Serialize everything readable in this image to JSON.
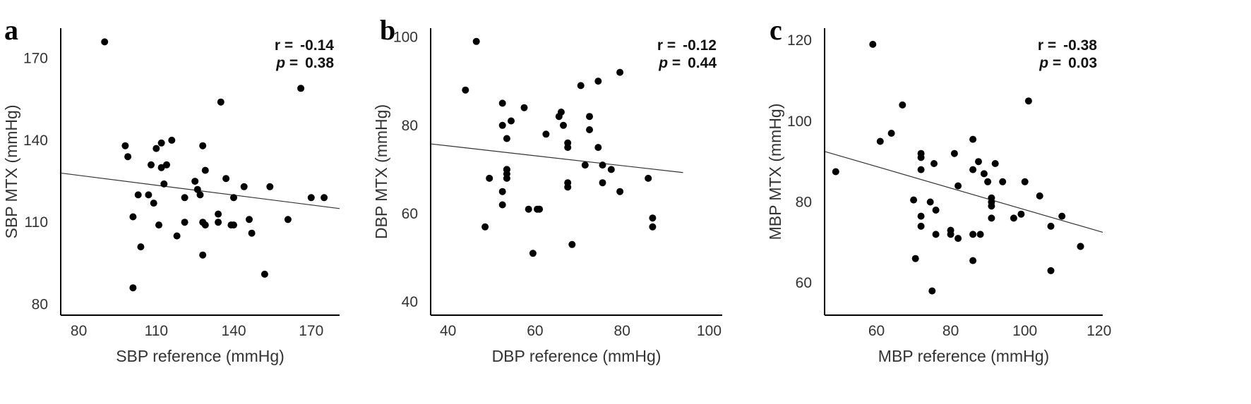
{
  "chart_data": [
    {
      "type": "scatter",
      "panel_label": "a",
      "xlabel": "SBP reference (mmHg)",
      "ylabel": "SBP MTX (mmHg)",
      "xlim": [
        73,
        181
      ],
      "ylim": [
        76,
        181
      ],
      "xticks": [
        80,
        110,
        140,
        170
      ],
      "yticks": [
        80,
        110,
        140,
        170
      ],
      "stats": {
        "r_label": "r =",
        "r_value": "-0.14",
        "p_label": "p",
        "p_eq": " =",
        "p_value": "0.38"
      },
      "trendline": {
        "x": [
          73,
          181
        ],
        "y": [
          128.0,
          115.0
        ]
      },
      "x": [
        90,
        98,
        99,
        101,
        101,
        103,
        104,
        107,
        108,
        109,
        110,
        111,
        112,
        112,
        113,
        114,
        116,
        118,
        121,
        121,
        125,
        126,
        127,
        128,
        128,
        128,
        129,
        129,
        134,
        134,
        135,
        137,
        139,
        140,
        140,
        144,
        146,
        147,
        152,
        154,
        161,
        166,
        170,
        175
      ],
      "y": [
        176,
        138,
        134,
        112,
        86,
        120,
        101,
        120,
        131,
        117,
        137,
        109,
        130,
        139,
        124,
        131,
        140,
        105,
        119,
        110,
        125,
        122,
        120,
        110,
        138,
        98,
        109,
        129,
        110,
        113,
        154,
        126,
        109,
        109,
        119,
        123,
        111,
        106,
        91,
        123,
        111,
        159,
        119,
        119
      ]
    },
    {
      "type": "scatter",
      "panel_label": "b",
      "xlabel": "DBP reference (mmHg)",
      "ylabel": "DBP MTX (mmHg)",
      "xlim": [
        36,
        103
      ],
      "ylim": [
        37,
        102
      ],
      "xticks": [
        40,
        60,
        80,
        100
      ],
      "yticks": [
        40,
        60,
        80,
        100
      ],
      "stats": {
        "r_label": "r =",
        "r_value": "-0.12",
        "p_label": "p",
        "p_eq": " =",
        "p_value": "0.44"
      },
      "trendline": {
        "x": [
          36,
          94
        ],
        "y": [
          75.8,
          69.3
        ]
      },
      "x": [
        44,
        46.5,
        48.5,
        49.5,
        52.5,
        52.5,
        52.5,
        52.5,
        53.5,
        53.5,
        53.5,
        53.5,
        53.5,
        54.5,
        57.5,
        58.5,
        59.5,
        60.5,
        61,
        62.5,
        65.5,
        66,
        66.5,
        67.5,
        67.5,
        67.5,
        67.5,
        68.5,
        70.5,
        71.5,
        72.5,
        72.5,
        74.5,
        74.5,
        75.5,
        75.5,
        77.5,
        79.5,
        79.5,
        86,
        87,
        87
      ],
      "y": [
        88,
        99,
        57,
        68,
        85,
        80,
        65,
        62,
        77,
        70,
        70,
        69,
        68,
        81,
        84,
        61,
        51,
        61,
        61,
        78,
        82,
        83,
        80,
        76,
        75,
        67,
        66,
        53,
        89,
        71,
        82,
        79,
        90,
        75,
        71,
        67,
        70,
        92,
        65,
        68,
        59,
        57
      ]
    },
    {
      "type": "scatter",
      "panel_label": "c",
      "xlabel": "MBP reference (mmHg)",
      "ylabel": "MBP MTX (mmHg)",
      "xlim": [
        46,
        121
      ],
      "ylim": [
        52,
        123
      ],
      "xticks": [
        60,
        80,
        100,
        120
      ],
      "yticks": [
        60,
        80,
        100,
        120
      ],
      "stats": {
        "r_label": "r =",
        "r_value": "-0.38",
        "p_label": "p",
        "p_eq": " =",
        "p_value": "0.03"
      },
      "trendline": {
        "x": [
          46,
          121
        ],
        "y": [
          92.5,
          72.5
        ]
      },
      "x": [
        49,
        59,
        61,
        64,
        67,
        70,
        70.5,
        72,
        72,
        72,
        72,
        72,
        74.5,
        75,
        75.5,
        76,
        76,
        80,
        80,
        81,
        82,
        82,
        86,
        86,
        86,
        86,
        87.5,
        88,
        89,
        90,
        91,
        91,
        91,
        91,
        92,
        94,
        97,
        99,
        100,
        101,
        104,
        107,
        107,
        110,
        115,
        115
      ],
      "y": [
        87.5,
        119,
        95,
        97,
        104,
        80.5,
        66,
        92,
        91,
        88,
        76.5,
        74,
        80,
        58,
        89.5,
        72,
        78,
        73,
        72,
        92,
        71,
        84,
        95.5,
        88,
        72,
        65.5,
        90,
        72,
        87,
        85,
        81,
        80,
        79,
        76,
        89.5,
        85,
        76,
        77,
        85,
        105,
        81.5,
        74,
        63,
        76.5,
        69,
        69
      ]
    }
  ]
}
